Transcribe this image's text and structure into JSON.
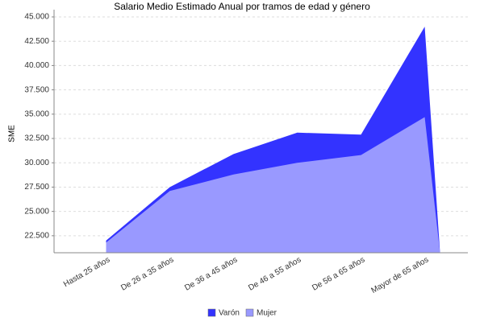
{
  "chart_data": {
    "type": "area",
    "title": "Salario Medio Estimado Anual por tramos de edad y género",
    "y_label": "SME",
    "categories": [
      "Hasta 25  años",
      "De 26  a 35  años",
      "De 36  a 45  años",
      "De 46 a 55  años",
      "De 56  a 65  años",
      "Mayor de 65  años"
    ],
    "series": [
      {
        "name": "Varón",
        "color": "#3333ff",
        "values": [
          22000,
          27500,
          30900,
          33100,
          32900,
          44000
        ]
      },
      {
        "name": "Mujer",
        "color": "#9999ff",
        "values": [
          21800,
          27100,
          28800,
          30000,
          30800,
          34700
        ]
      }
    ],
    "ylim": [
      20750,
      45000
    ],
    "yticks": [
      {
        "value": 22500,
        "label": "22.500"
      },
      {
        "value": 25000,
        "label": "25.000"
      },
      {
        "value": 27500,
        "label": "27.500"
      },
      {
        "value": 30000,
        "label": "30.000"
      },
      {
        "value": 32500,
        "label": "32.500"
      },
      {
        "value": 35000,
        "label": "35.000"
      },
      {
        "value": 37500,
        "label": "37.500"
      },
      {
        "value": 40000,
        "label": "40.000"
      },
      {
        "value": 42500,
        "label": "42.500"
      },
      {
        "value": 45000,
        "label": "45.000"
      }
    ],
    "grid": true,
    "legend": "bottom"
  }
}
